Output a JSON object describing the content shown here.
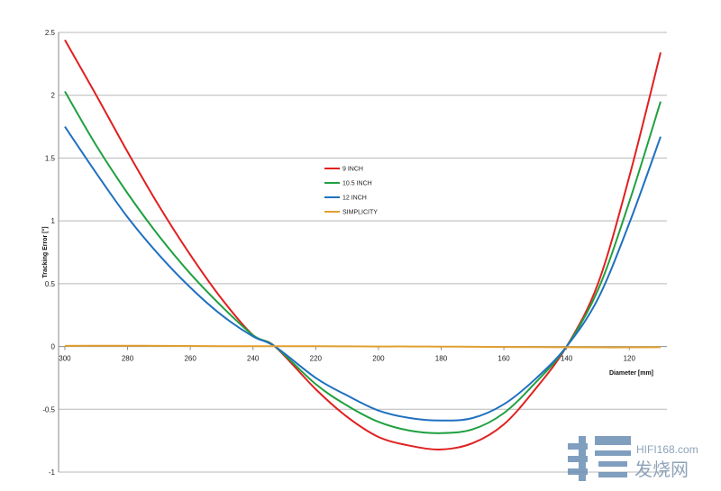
{
  "chart_data": {
    "type": "line",
    "title": "",
    "xlabel": "Diameter [mm]",
    "ylabel": "Tracking Error [°]",
    "xlim": [
      302,
      108
    ],
    "ylim": [
      -1,
      2.5
    ],
    "x_reversed": true,
    "grid": true,
    "legend_position": "center-left",
    "x_ticks": [
      "300",
      "280",
      "260",
      "240",
      "220",
      "200",
      "180",
      "160",
      "140",
      "120"
    ],
    "y_ticks": [
      "2.5",
      "2",
      "1.5",
      "1",
      "0.5",
      "0",
      "-0.5",
      "-1"
    ],
    "x": [
      300,
      290,
      280,
      270,
      260,
      250,
      240,
      233,
      220,
      210,
      200,
      190,
      180,
      170,
      160,
      150,
      140,
      130,
      120,
      110
    ],
    "series": [
      {
        "name": "9 INCH",
        "color": "#e02020",
        "values": [
          2.44,
          2.0,
          1.55,
          1.12,
          0.73,
          0.38,
          0.09,
          0.0,
          -0.34,
          -0.56,
          -0.72,
          -0.79,
          -0.82,
          -0.77,
          -0.62,
          -0.34,
          0.0,
          0.5,
          1.35,
          2.34
        ]
      },
      {
        "name": "10.5 INCH",
        "color": "#20a040",
        "values": [
          2.03,
          1.6,
          1.22,
          0.88,
          0.58,
          0.32,
          0.09,
          0.0,
          -0.3,
          -0.47,
          -0.6,
          -0.67,
          -0.69,
          -0.66,
          -0.53,
          -0.29,
          0.0,
          0.45,
          1.15,
          1.95
        ]
      },
      {
        "name": "12 INCH",
        "color": "#2070c0",
        "values": [
          1.75,
          1.38,
          1.03,
          0.73,
          0.47,
          0.25,
          0.08,
          0.0,
          -0.25,
          -0.39,
          -0.51,
          -0.57,
          -0.59,
          -0.57,
          -0.46,
          -0.26,
          0.0,
          0.38,
          0.98,
          1.67
        ]
      },
      {
        "name": "SIMPLICITY",
        "color": "#e0a030",
        "values": [
          0.005,
          0.006,
          0.006,
          0.005,
          0.004,
          0.003,
          0.002,
          0.002,
          0.002,
          0.001,
          0.0,
          0.0,
          -0.001,
          -0.002,
          -0.004,
          -0.005,
          -0.006,
          -0.007,
          -0.007,
          -0.006
        ]
      }
    ]
  },
  "watermark": {
    "site": "HIFI168.com",
    "name": "发烧网",
    "color": "#6a8fb5"
  }
}
